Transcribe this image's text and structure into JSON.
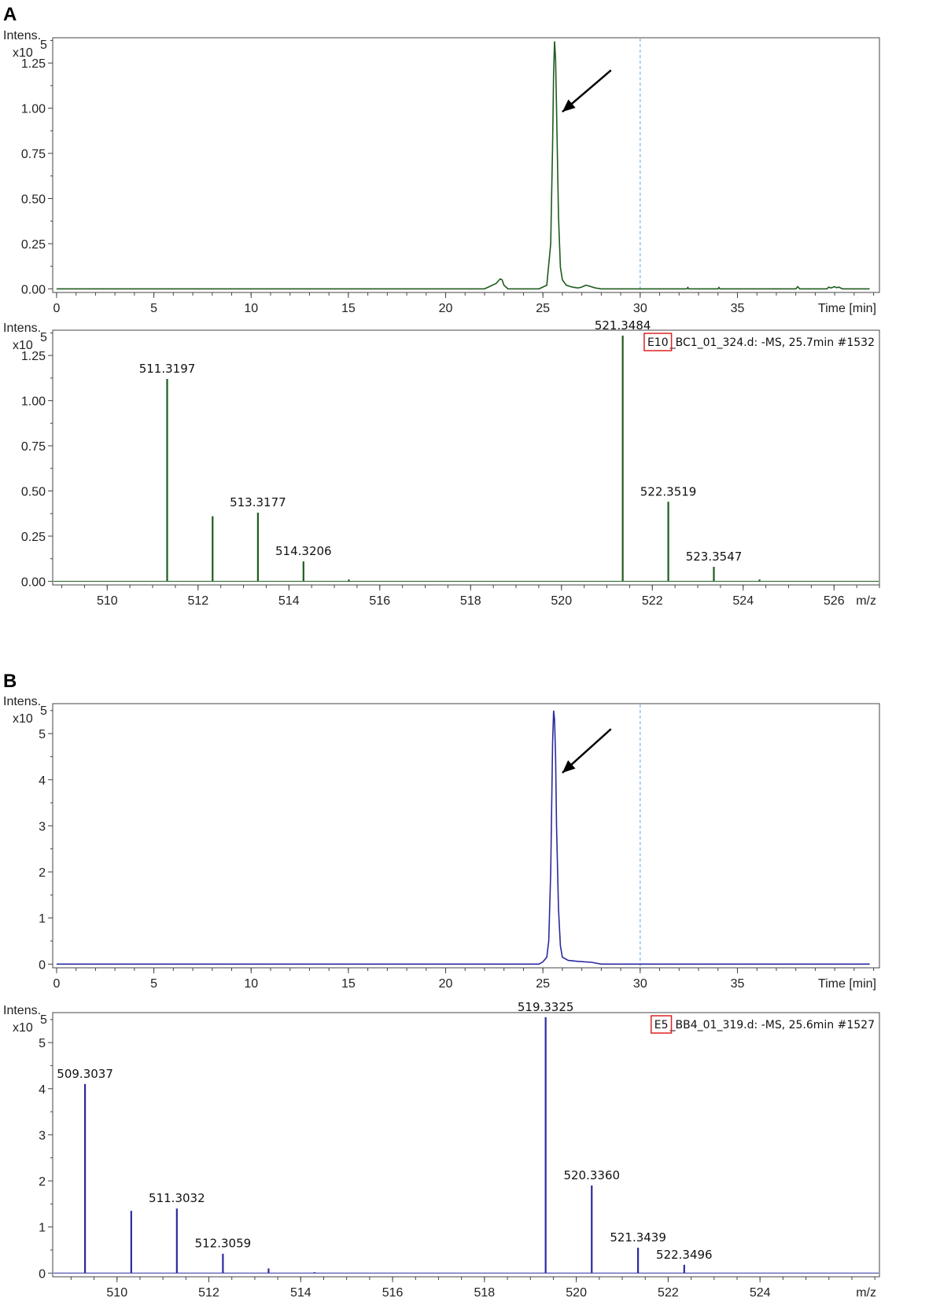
{
  "panels": [
    {
      "letter": "A"
    },
    {
      "letter": "B"
    }
  ],
  "chart_data": [
    {
      "type": "line",
      "panel": "A",
      "ylabel": "Intens.",
      "yunit_prefix": "x10",
      "yunit_exp": "5",
      "xlabel": "Time [min]",
      "xlim": [
        -0.2,
        42.3
      ],
      "ylim": [
        -0.02,
        1.39
      ],
      "xticks": [
        0,
        5,
        10,
        15,
        20,
        25,
        30,
        35
      ],
      "yticks": [
        0.0,
        0.25,
        0.5,
        0.75,
        1.0,
        1.25
      ],
      "ytick_labels": [
        "0.00",
        "0.25",
        "0.50",
        "0.75",
        "1.00",
        "1.25"
      ],
      "dashed_line_x": 30,
      "arrow": {
        "from": [
          28.5,
          1.21
        ],
        "to": [
          26.0,
          0.98
        ]
      },
      "color": "#1e5b1e",
      "series": [
        {
          "x": [
            0,
            22.0,
            22.6,
            22.8,
            22.9,
            23.0,
            23.2,
            24.8,
            25.2,
            25.4,
            25.5,
            25.55,
            25.6,
            25.65,
            25.7,
            25.8,
            25.9,
            26.0,
            26.2,
            26.5,
            26.8,
            27.0,
            27.2,
            27.4,
            27.7,
            28.0,
            32.4,
            32.45,
            32.5,
            34.0,
            34.05,
            34.1,
            38.0,
            38.1,
            38.2,
            39.0,
            39.6,
            39.7,
            39.8,
            40.0,
            40.1,
            40.2,
            40.4,
            41.8
          ],
          "y": [
            0.0,
            0.0,
            0.03,
            0.055,
            0.05,
            0.02,
            0.0,
            0.0,
            0.02,
            0.25,
            0.8,
            1.2,
            1.37,
            1.27,
            1.0,
            0.4,
            0.12,
            0.05,
            0.02,
            0.01,
            0.005,
            0.01,
            0.02,
            0.015,
            0.005,
            0.0,
            0.0,
            0.008,
            0.0,
            0.0,
            0.008,
            0.0,
            0.0,
            0.012,
            0.0,
            0.0,
            0.0,
            0.01,
            0.005,
            0.012,
            0.006,
            0.01,
            0.0,
            0.0
          ]
        }
      ]
    },
    {
      "type": "bar",
      "panel": "A",
      "ylabel": "Intens.",
      "yunit_prefix": "x10",
      "yunit_exp": "5",
      "xlabel": "m/z",
      "xlim": [
        508.8,
        527.0
      ],
      "ylim": [
        -0.02,
        1.39
      ],
      "xticks": [
        510,
        512,
        514,
        516,
        518,
        520,
        522,
        524,
        526
      ],
      "yticks": [
        0.0,
        0.25,
        0.5,
        0.75,
        1.0,
        1.25
      ],
      "ytick_labels": [
        "0.00",
        "0.25",
        "0.50",
        "0.75",
        "1.00",
        "1.25"
      ],
      "info_box": "E10",
      "info_rest": "_BC1_01_324.d: -MS, 25.7min #1532",
      "color": "#1e5b1e",
      "peaks": [
        {
          "x": 511.3197,
          "y": 1.12,
          "label": "511.3197"
        },
        {
          "x": 512.32,
          "y": 0.36,
          "label": ""
        },
        {
          "x": 513.3177,
          "y": 0.38,
          "label": "513.3177"
        },
        {
          "x": 514.3206,
          "y": 0.11,
          "label": "514.3206"
        },
        {
          "x": 515.32,
          "y": 0.01,
          "label": ""
        },
        {
          "x": 521.3484,
          "y": 1.36,
          "label": "521.3484"
        },
        {
          "x": 522.3519,
          "y": 0.44,
          "label": "522.3519"
        },
        {
          "x": 523.3547,
          "y": 0.08,
          "label": "523.3547"
        },
        {
          "x": 524.36,
          "y": 0.01,
          "label": ""
        }
      ]
    },
    {
      "type": "line",
      "panel": "B",
      "ylabel": "Intens.",
      "yunit_prefix": "x10",
      "yunit_exp": "5",
      "xlabel": "Time [min]",
      "xlim": [
        -0.2,
        42.3
      ],
      "ylim": [
        -0.08,
        5.65
      ],
      "xticks": [
        0,
        5,
        10,
        15,
        20,
        25,
        30,
        35
      ],
      "yticks": [
        0,
        1,
        2,
        3,
        4,
        5
      ],
      "ytick_labels": [
        "0",
        "1",
        "2",
        "3",
        "4",
        "5"
      ],
      "dashed_line_x": 30,
      "arrow": {
        "from": [
          28.5,
          5.1
        ],
        "to": [
          26.0,
          4.15
        ]
      },
      "color": "#2a2aa0",
      "series": [
        {
          "x": [
            0,
            24.8,
            25.0,
            25.2,
            25.3,
            25.4,
            25.5,
            25.55,
            25.6,
            25.65,
            25.7,
            25.8,
            25.9,
            26.0,
            26.3,
            26.8,
            27.5,
            28.0,
            41.8
          ],
          "y": [
            0.0,
            0.0,
            0.05,
            0.15,
            0.5,
            2.0,
            4.8,
            5.5,
            5.3,
            4.5,
            3.0,
            1.2,
            0.4,
            0.15,
            0.08,
            0.06,
            0.04,
            0.0,
            0.0
          ]
        }
      ]
    },
    {
      "type": "bar",
      "panel": "B",
      "ylabel": "Intens.",
      "yunit_prefix": "x10",
      "yunit_exp": "5",
      "xlabel": "m/z",
      "xlim": [
        508.6,
        526.6
      ],
      "ylim": [
        -0.08,
        5.65
      ],
      "xticks": [
        510,
        512,
        514,
        516,
        518,
        520,
        522,
        524
      ],
      "yticks": [
        0,
        1,
        2,
        3,
        4,
        5
      ],
      "ytick_labels": [
        "0",
        "1",
        "2",
        "3",
        "4",
        "5"
      ],
      "info_box": "E5",
      "info_rest": "_BB4_01_319.d: -MS, 25.6min #1527",
      "color": "#2a2aa0",
      "peaks": [
        {
          "x": 509.3037,
          "y": 4.1,
          "label": "509.3037"
        },
        {
          "x": 510.31,
          "y": 1.35,
          "label": ""
        },
        {
          "x": 511.3032,
          "y": 1.4,
          "label": "511.3032"
        },
        {
          "x": 512.3059,
          "y": 0.42,
          "label": "512.3059"
        },
        {
          "x": 513.3,
          "y": 0.1,
          "label": ""
        },
        {
          "x": 514.3,
          "y": 0.02,
          "label": ""
        },
        {
          "x": 519.3325,
          "y": 5.55,
          "label": "519.3325"
        },
        {
          "x": 520.336,
          "y": 1.9,
          "label": "520.3360"
        },
        {
          "x": 521.3439,
          "y": 0.55,
          "label": "521.3439"
        },
        {
          "x": 522.3496,
          "y": 0.18,
          "label": "522.3496"
        }
      ]
    }
  ]
}
